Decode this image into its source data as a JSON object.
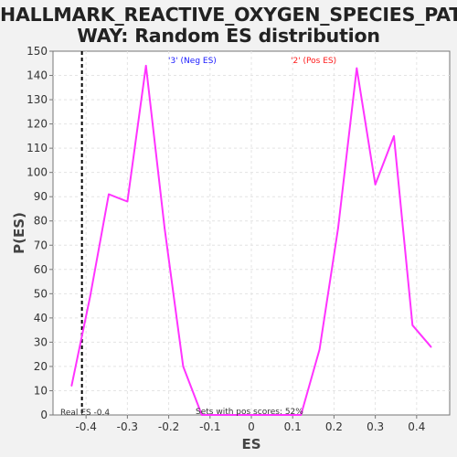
{
  "chart_data": {
    "type": "line",
    "title_line1": "HALLMARK_REACTIVE_OXYGEN_SPECIES_PATH",
    "title_line2": "WAY: Random ES distribution",
    "xlabel": "ES",
    "ylabel": "P(ES)",
    "xlim": [
      -0.48,
      0.48
    ],
    "ylim": [
      0,
      150
    ],
    "x_ticks": [
      -0.4,
      -0.3,
      -0.2,
      -0.1,
      0.0,
      0.1,
      0.2,
      0.3,
      0.4
    ],
    "x_tick_labels": [
      "-0.4",
      "-0.3",
      "-0.2",
      "-0.1",
      "0",
      "0.1",
      "0.2",
      "0.3",
      "0.4"
    ],
    "y_ticks": [
      0,
      10,
      20,
      30,
      40,
      50,
      60,
      70,
      80,
      90,
      100,
      110,
      120,
      130,
      140,
      150
    ],
    "grid": true,
    "series": [
      {
        "color": "#ff33ff",
        "x": [
          -0.435,
          -0.39,
          -0.345,
          -0.3,
          -0.255,
          -0.21,
          -0.165,
          -0.12,
          -0.075,
          -0.03,
          0.0,
          0.03,
          0.075,
          0.12,
          0.165,
          0.21,
          0.255,
          0.3,
          0.345,
          0.39,
          0.435
        ],
        "y": [
          12,
          49,
          91,
          88,
          144,
          77,
          20,
          0,
          0,
          0,
          0,
          0,
          0,
          0,
          27,
          77,
          143,
          95,
          115,
          37,
          28
        ]
      }
    ],
    "real_es": -0.41,
    "real_es_label": "Real ES -0.4",
    "neg_label": "'3' (Neg ES)",
    "neg_color": "#1a1aff",
    "pos_label": "'2' (Pos ES)",
    "pos_color": "#ff1a1a",
    "pos_scores_label": "Sets with pos scores: 52%"
  }
}
